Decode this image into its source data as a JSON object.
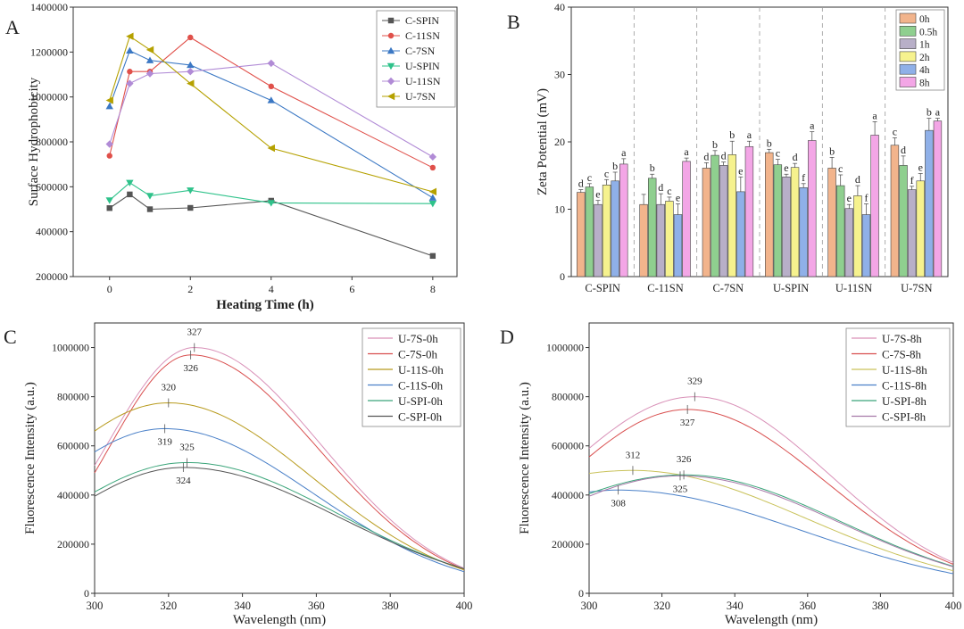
{
  "chart_data": [
    {
      "panel": "A",
      "type": "line",
      "xlabel": "Heating Time (h)",
      "ylabel": "Surface Hydrophobicity",
      "xlim": [
        -0.9,
        8.6
      ],
      "ylim": [
        200000,
        1400000
      ],
      "xticks": [
        0,
        2,
        4,
        6,
        8
      ],
      "yticks": [
        200000,
        400000,
        600000,
        800000,
        1000000,
        1200000,
        1400000
      ],
      "x": [
        0,
        0.5,
        1,
        2,
        4,
        8
      ],
      "legend_position": "top-right",
      "series": [
        {
          "name": "C-SPIN",
          "color": "#555555",
          "marker": "square",
          "values": [
            505000,
            566000,
            500000,
            506000,
            538000,
            292000
          ]
        },
        {
          "name": "C-11SN",
          "color": "#e0504a",
          "marker": "circle",
          "values": [
            738000,
            1113000,
            1113000,
            1265000,
            1047000,
            685000
          ]
        },
        {
          "name": "C-7SN",
          "color": "#3b78c4",
          "marker": "triangle-up",
          "values": [
            958000,
            1206000,
            1163000,
            1142000,
            985000,
            551000
          ]
        },
        {
          "name": "U-SPIN",
          "color": "#2ec28a",
          "marker": "triangle-down",
          "values": [
            540000,
            618000,
            560000,
            584000,
            528000,
            525000
          ]
        },
        {
          "name": "U-11SN",
          "color": "#b18bd6",
          "marker": "diamond",
          "values": [
            790000,
            1060000,
            1104000,
            1113000,
            1150000,
            733000
          ]
        },
        {
          "name": "U-7SN",
          "color": "#b5a100",
          "marker": "triangle-left",
          "values": [
            985000,
            1270000,
            1210000,
            1060000,
            772000,
            578000
          ]
        }
      ]
    },
    {
      "panel": "B",
      "type": "bar",
      "ylabel": "Zeta Potential (mV)",
      "ylim": [
        0,
        40
      ],
      "yticks": [
        0,
        10,
        20,
        30,
        40
      ],
      "categories": [
        "C-SPIN",
        "C-11SN",
        "C-7SN",
        "U-SPIN",
        "U-11SN",
        "U-7SN"
      ],
      "legend_position": "top-right",
      "series": [
        {
          "name": "0h",
          "color": "#f2b48c",
          "values": [
            12.5,
            10.7,
            16.1,
            18.4,
            16.1,
            19.5
          ],
          "errors": [
            0.4,
            1.5,
            0.8,
            0.5,
            1.6,
            1.1
          ],
          "letters": [
            "d",
            "",
            "d",
            "b",
            "b",
            "c"
          ]
        },
        {
          "name": "0.5h",
          "color": "#8fcf8f",
          "values": [
            13.3,
            14.6,
            18.0,
            16.6,
            13.5,
            16.5
          ],
          "errors": [
            0.5,
            0.6,
            0.7,
            0.8,
            1.6,
            1.4
          ],
          "letters": [
            "c",
            "b",
            "b",
            "c",
            "c",
            "d"
          ]
        },
        {
          "name": "1h",
          "color": "#b8afc8",
          "values": [
            10.7,
            10.7,
            16.5,
            14.8,
            10.1,
            12.9
          ],
          "errors": [
            0.6,
            1.6,
            0.5,
            0.4,
            0.6,
            0.5
          ],
          "letters": [
            "e",
            "d",
            "d",
            "e",
            "e",
            "f"
          ]
        },
        {
          "name": "2h",
          "color": "#f6f28e",
          "values": [
            13.6,
            11.2,
            18.1,
            16.2,
            12.0,
            14.2
          ],
          "errors": [
            0.8,
            0.6,
            2.0,
            0.6,
            1.5,
            1.1
          ],
          "letters": [
            "c",
            "c",
            "b",
            "d",
            "d",
            "e"
          ]
        },
        {
          "name": "4h",
          "color": "#8fb0e8",
          "values": [
            14.2,
            9.2,
            12.6,
            13.2,
            9.2,
            21.7
          ],
          "errors": [
            1.3,
            1.6,
            2.2,
            0.6,
            1.6,
            1.8
          ],
          "letters": [
            "b",
            "e",
            "e",
            "f",
            "f",
            "b"
          ]
        },
        {
          "name": "8h",
          "color": "#f3a6e6",
          "values": [
            16.7,
            17.1,
            19.3,
            20.2,
            21.0,
            23.1
          ],
          "errors": [
            0.8,
            0.5,
            0.8,
            1.3,
            2.0,
            0.4
          ],
          "letters": [
            "a",
            "a",
            "a",
            "a",
            "a",
            "a"
          ]
        }
      ]
    },
    {
      "panel": "C",
      "type": "line",
      "xlabel": "Wavelength (nm)",
      "ylabel": "Fluorescence Intensity (a.u.)",
      "xlim": [
        300,
        400
      ],
      "ylim": [
        0,
        1100000
      ],
      "xticks": [
        300,
        320,
        340,
        360,
        380,
        400
      ],
      "yticks": [
        0,
        200000,
        400000,
        600000,
        800000,
        1000000
      ],
      "legend_position": "top-right",
      "series": [
        {
          "name": "U-7S-0h",
          "color": "#d991b8",
          "peak_x": 327,
          "peak_y": 1000000,
          "start_y": 520000,
          "end_y": 102000
        },
        {
          "name": "C-7S-0h",
          "color": "#d94f4f",
          "peak_x": 326,
          "peak_y": 970000,
          "start_y": 490000,
          "end_y": 98000
        },
        {
          "name": "U-11S-0h",
          "color": "#b89b1e",
          "peak_x": 320,
          "peak_y": 775000,
          "start_y": 660000,
          "end_y": 95000
        },
        {
          "name": "C-11S-0h",
          "color": "#4a80c8",
          "peak_x": 319,
          "peak_y": 670000,
          "start_y": 575000,
          "end_y": 88000
        },
        {
          "name": "U-SPI-0h",
          "color": "#3ba57a",
          "peak_x": 325,
          "peak_y": 532000,
          "start_y": 412000,
          "end_y": 100000
        },
        {
          "name": "C-SPI-0h",
          "color": "#555555",
          "peak_x": 324,
          "peak_y": 512000,
          "start_y": 395000,
          "end_y": 100000
        }
      ],
      "annotations": [
        "327",
        "326",
        "320",
        "319",
        "325",
        "324"
      ]
    },
    {
      "panel": "D",
      "type": "line",
      "xlabel": "Wavelength (nm)",
      "ylabel": "Fluorescence Intensity (a.u.)",
      "xlim": [
        300,
        400
      ],
      "ylim": [
        0,
        1100000
      ],
      "xticks": [
        300,
        320,
        340,
        360,
        380,
        400
      ],
      "yticks": [
        0,
        200000,
        400000,
        600000,
        800000,
        1000000
      ],
      "legend_position": "top-right",
      "series": [
        {
          "name": "U-7S-8h",
          "color": "#d991b8",
          "peak_x": 329,
          "peak_y": 800000,
          "start_y": 590000,
          "end_y": 125000
        },
        {
          "name": "C-7S-8h",
          "color": "#d94f4f",
          "peak_x": 327,
          "peak_y": 748000,
          "start_y": 555000,
          "end_y": 118000
        },
        {
          "name": "U-11S-8h",
          "color": "#c9c25a",
          "peak_x": 312,
          "peak_y": 500000,
          "start_y": 488000,
          "end_y": 92000
        },
        {
          "name": "C-11S-8h",
          "color": "#4a80c8",
          "peak_x": 308,
          "peak_y": 420000,
          "start_y": 412000,
          "end_y": 80000
        },
        {
          "name": "U-SPI-8h",
          "color": "#3ba57a",
          "peak_x": 326,
          "peak_y": 482000,
          "start_y": 405000,
          "end_y": 110000
        },
        {
          "name": "C-SPI-8h",
          "color": "#a77aa8",
          "peak_x": 325,
          "peak_y": 478000,
          "start_y": 395000,
          "end_y": 108000
        }
      ],
      "annotations": [
        "329",
        "327",
        "312",
        "326",
        "325",
        "308"
      ]
    }
  ]
}
